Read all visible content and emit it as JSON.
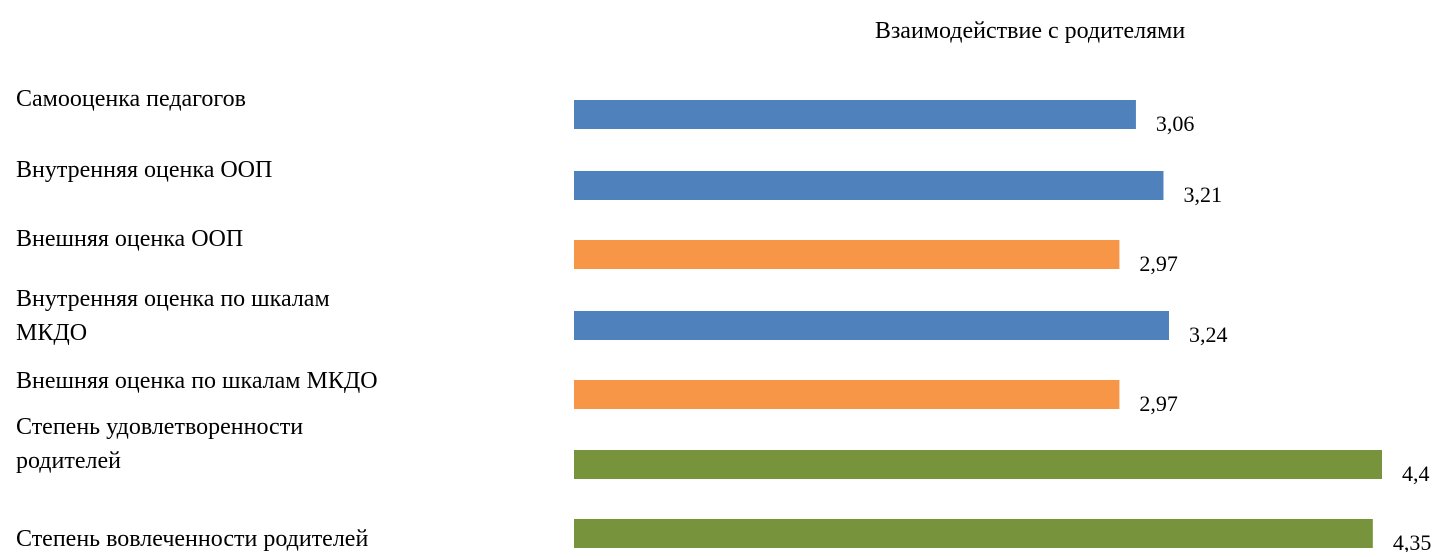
{
  "chart_data": {
    "type": "bar",
    "orientation": "horizontal",
    "title": "Взаимодействие с родителями",
    "categories": [
      "Самооценка педагогов",
      "Внутренняя оценка ООП",
      "Внешняя оценка ООП",
      "Внутренняя оценка по шкалам МКДО",
      "Внешняя оценка по шкалам МКДО",
      "Степень удовлетворенности родителей",
      "Степень вовлеченности родителей"
    ],
    "category_lines": [
      [
        "Самооценка педагогов"
      ],
      [
        "Внутренняя оценка ООП"
      ],
      [
        "Внешняя оценка ООП"
      ],
      [
        "Внутренняя оценка по шкалам",
        "МКДО"
      ],
      [
        "Внешняя оценка по шкалам МКДО"
      ],
      [
        "Степень удовлетворенности",
        "родителей"
      ],
      [
        "Степень вовлеченности родителей"
      ]
    ],
    "values": [
      3.06,
      3.21,
      2.97,
      3.24,
      2.97,
      4.4,
      4.35
    ],
    "data_labels": [
      "3,06",
      "3,21",
      "2,97",
      "3,24",
      "2,97",
      "4,4",
      "4,35"
    ],
    "bar_colors": [
      "#4F81BD",
      "#4F81BD",
      "#F79646",
      "#4F81BD",
      "#F79646",
      "#77933C",
      "#77933C"
    ],
    "xlim": [
      0,
      4.4
    ],
    "grid": false,
    "legend": "none",
    "xlabel": "",
    "ylabel": ""
  }
}
